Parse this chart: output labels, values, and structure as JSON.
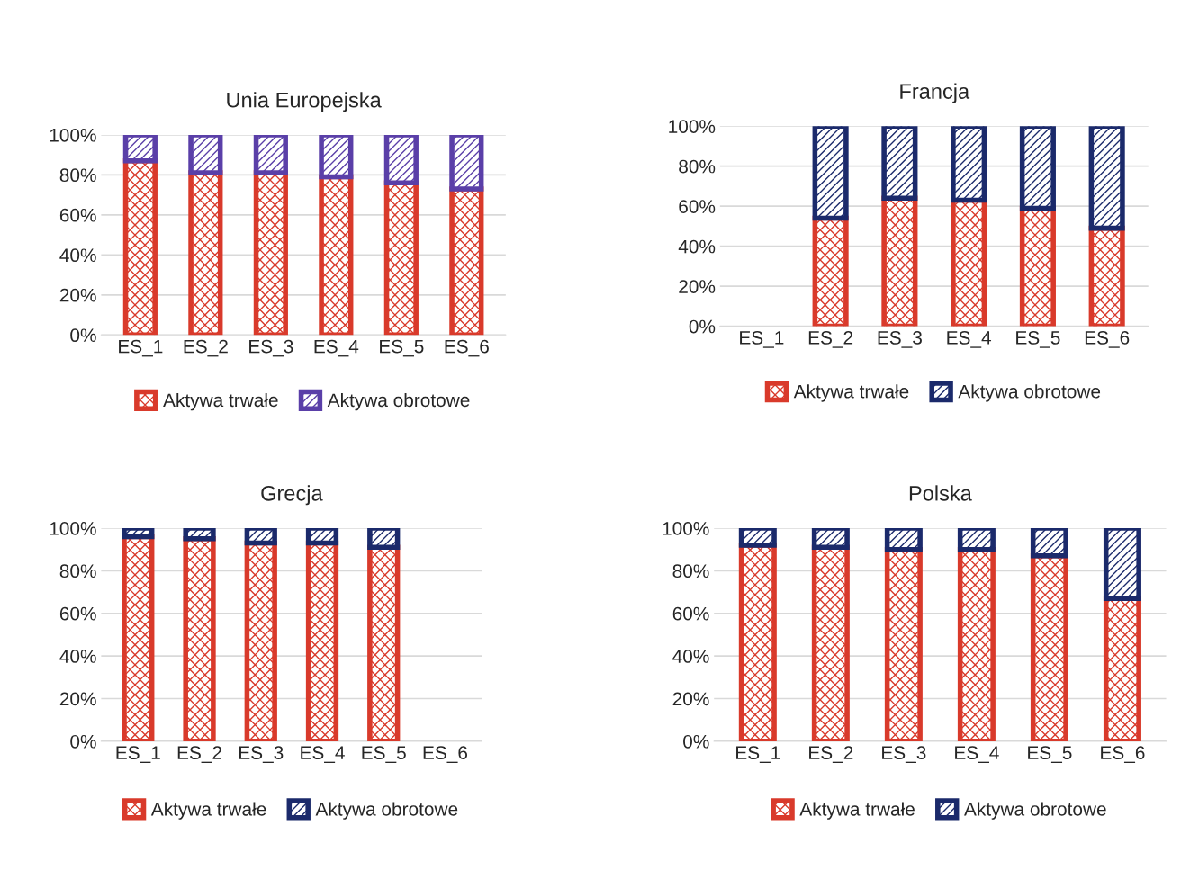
{
  "chart_data": [
    {
      "type": "bar",
      "stacked": true,
      "title": "Unia Europejska",
      "categories": [
        "ES_1",
        "ES_2",
        "ES_3",
        "ES_4",
        "ES_5",
        "ES_6"
      ],
      "ylim": [
        0,
        100
      ],
      "yticks": [
        {
          "value": 0,
          "label": "0%"
        },
        {
          "value": 20,
          "label": "20%"
        },
        {
          "value": 40,
          "label": "40%"
        },
        {
          "value": 60,
          "label": "60%"
        },
        {
          "value": 80,
          "label": "80%"
        },
        {
          "value": 100,
          "label": "100%"
        }
      ],
      "grid": "y",
      "legend": "bottom",
      "series": [
        {
          "name": "Aktywa trwałe",
          "color": "#d93a2b",
          "values": [
            87,
            81,
            81,
            79,
            76,
            73
          ]
        },
        {
          "name": "Aktywa obrotowe",
          "color": "#5a3fa8",
          "values": [
            13,
            19,
            19,
            21,
            24,
            27
          ]
        }
      ]
    },
    {
      "type": "bar",
      "stacked": true,
      "title": "Francja",
      "categories": [
        "ES_1",
        "ES_2",
        "ES_3",
        "ES_4",
        "ES_5",
        "ES_6"
      ],
      "ylim": [
        0,
        100
      ],
      "yticks": [
        {
          "value": 0,
          "label": "0%"
        },
        {
          "value": 20,
          "label": "20%"
        },
        {
          "value": 40,
          "label": "40%"
        },
        {
          "value": 60,
          "label": "60%"
        },
        {
          "value": 80,
          "label": "80%"
        },
        {
          "value": 100,
          "label": "100%"
        }
      ],
      "grid": "y",
      "legend": "bottom",
      "series": [
        {
          "name": "Aktywa trwałe",
          "color": "#d93a2b",
          "values": [
            null,
            54,
            64,
            63,
            59,
            49
          ]
        },
        {
          "name": "Aktywa obrotowe",
          "color": "#1b2a6b",
          "values": [
            null,
            46,
            36,
            37,
            41,
            51
          ]
        }
      ]
    },
    {
      "type": "bar",
      "stacked": true,
      "title": "Grecja",
      "categories": [
        "ES_1",
        "ES_2",
        "ES_3",
        "ES_4",
        "ES_5",
        "ES_6"
      ],
      "ylim": [
        0,
        100
      ],
      "yticks": [
        {
          "value": 0,
          "label": "0%"
        },
        {
          "value": 20,
          "label": "20%"
        },
        {
          "value": 40,
          "label": "40%"
        },
        {
          "value": 60,
          "label": "60%"
        },
        {
          "value": 80,
          "label": "80%"
        },
        {
          "value": 100,
          "label": "100%"
        }
      ],
      "grid": "y",
      "legend": "bottom",
      "series": [
        {
          "name": "Aktywa trwałe",
          "color": "#d93a2b",
          "values": [
            96,
            95,
            93,
            93,
            91,
            null
          ]
        },
        {
          "name": "Aktywa obrotowe",
          "color": "#1b2a6b",
          "values": [
            4,
            5,
            7,
            7,
            9,
            null
          ]
        }
      ]
    },
    {
      "type": "bar",
      "stacked": true,
      "title": "Polska",
      "categories": [
        "ES_1",
        "ES_2",
        "ES_3",
        "ES_4",
        "ES_5",
        "ES_6"
      ],
      "ylim": [
        0,
        100
      ],
      "yticks": [
        {
          "value": 0,
          "label": "0%"
        },
        {
          "value": 20,
          "label": "20%"
        },
        {
          "value": 40,
          "label": "40%"
        },
        {
          "value": 60,
          "label": "60%"
        },
        {
          "value": 80,
          "label": "80%"
        },
        {
          "value": 100,
          "label": "100%"
        }
      ],
      "grid": "y",
      "legend": "bottom",
      "series": [
        {
          "name": "Aktywa trwałe",
          "color": "#d93a2b",
          "values": [
            92,
            91,
            90,
            90,
            87,
            67
          ]
        },
        {
          "name": "Aktywa obrotowe",
          "color": "#1b2a6b",
          "values": [
            8,
            9,
            10,
            10,
            13,
            33
          ]
        }
      ]
    }
  ]
}
